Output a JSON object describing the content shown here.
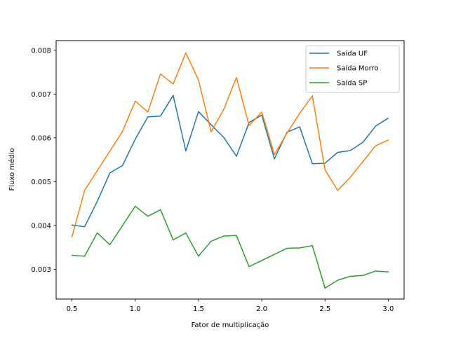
{
  "chart_data": {
    "type": "line",
    "xlabel": "Fator de multiplicação",
    "ylabel": "Fluxo médio",
    "xlim": [
      0.375,
      3.125
    ],
    "ylim": [
      0.00232,
      0.00822
    ],
    "xticks": [
      0.5,
      1.0,
      1.5,
      2.0,
      2.5,
      3.0
    ],
    "xtick_labels": [
      "0.5",
      "1.0",
      "1.5",
      "2.0",
      "2.5",
      "3.0"
    ],
    "yticks": [
      0.003,
      0.004,
      0.005,
      0.006,
      0.007,
      0.008
    ],
    "ytick_labels": [
      "0.003",
      "0.004",
      "0.005",
      "0.006",
      "0.007",
      "0.008"
    ],
    "grid": false,
    "legend_position": "top-right",
    "x": [
      0.5,
      0.6,
      0.7,
      0.8,
      0.9,
      1.0,
      1.1,
      1.2,
      1.3,
      1.4,
      1.5,
      1.6,
      1.7,
      1.8,
      1.9,
      2.0,
      2.1,
      2.2,
      2.3,
      2.4,
      2.5,
      2.6,
      2.7,
      2.8,
      2.9,
      3.0
    ],
    "series": [
      {
        "name": "Saída UF",
        "color": "#1f77b4",
        "values": [
          0.00401,
          0.00397,
          0.00455,
          0.0052,
          0.00537,
          0.00597,
          0.00648,
          0.0065,
          0.00697,
          0.0057,
          0.0066,
          0.0063,
          0.00601,
          0.00558,
          0.00635,
          0.00652,
          0.00552,
          0.00613,
          0.00625,
          0.00541,
          0.00542,
          0.00567,
          0.00571,
          0.0059,
          0.00627,
          0.00645
        ]
      },
      {
        "name": "Saída Morro",
        "color": "#ff7f0e",
        "values": [
          0.00374,
          0.0048,
          0.00525,
          0.0057,
          0.00615,
          0.00684,
          0.00659,
          0.00746,
          0.00723,
          0.00794,
          0.00732,
          0.00614,
          0.00665,
          0.00738,
          0.00628,
          0.00659,
          0.00562,
          0.00611,
          0.00656,
          0.00696,
          0.00527,
          0.0048,
          0.0051,
          0.00546,
          0.00582,
          0.00595
        ]
      },
      {
        "name": "Saída SP",
        "color": "#2ca02c",
        "values": [
          0.00332,
          0.0033,
          0.00383,
          0.00356,
          0.004,
          0.00444,
          0.00421,
          0.00436,
          0.00367,
          0.00383,
          0.0033,
          0.00364,
          0.00376,
          0.00377,
          0.00306,
          0.0032,
          0.00334,
          0.00348,
          0.00349,
          0.00354,
          0.00257,
          0.00275,
          0.00284,
          0.00286,
          0.00296,
          0.00294
        ]
      }
    ]
  }
}
